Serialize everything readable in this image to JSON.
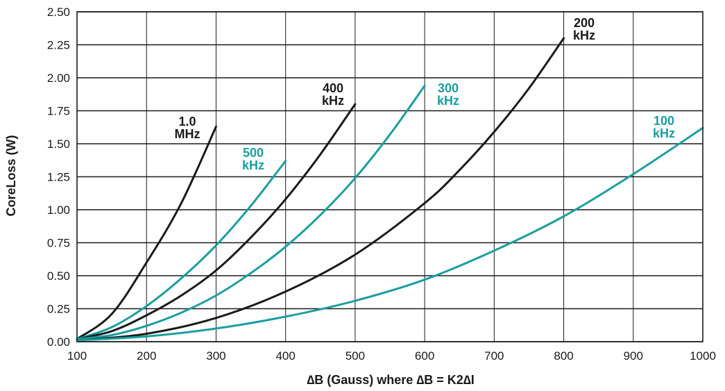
{
  "chart_data": {
    "type": "line",
    "title": "",
    "xlabel": "∆B (Gauss) where ∆B = K2∆I",
    "ylabel": "CoreLoss (W)",
    "xlim": [
      100,
      1000
    ],
    "ylim": [
      0,
      2.5
    ],
    "x_ticks": [
      "100",
      "200",
      "300",
      "400",
      "500",
      "600",
      "700",
      "800",
      "900",
      "1000"
    ],
    "y_ticks": [
      "0.00",
      "0.25",
      "0.50",
      "0.75",
      "1.00",
      "1.25",
      "1.50",
      "1.75",
      "2.00",
      "2.25",
      "2.50"
    ],
    "grid": true,
    "colors": {
      "black": "#1a1a1a",
      "teal": "#1a9ea0"
    },
    "series": [
      {
        "label_lines": [
          "1.0",
          "MHz"
        ],
        "color": "#1a1a1a",
        "points": [
          [
            100,
            0.02
          ],
          [
            150,
            0.21
          ],
          [
            200,
            0.6
          ],
          [
            250,
            1.05
          ],
          [
            300,
            1.63
          ]
        ]
      },
      {
        "label_lines": [
          "500",
          "kHz"
        ],
        "color": "#1a9ea0",
        "points": [
          [
            100,
            0.02
          ],
          [
            150,
            0.11
          ],
          [
            200,
            0.27
          ],
          [
            250,
            0.48
          ],
          [
            300,
            0.73
          ],
          [
            350,
            1.03
          ],
          [
            400,
            1.37
          ]
        ]
      },
      {
        "label_lines": [
          "400",
          "kHz"
        ],
        "color": "#1a1a1a",
        "points": [
          [
            100,
            0.02
          ],
          [
            150,
            0.08
          ],
          [
            200,
            0.2
          ],
          [
            250,
            0.35
          ],
          [
            300,
            0.54
          ],
          [
            350,
            0.79
          ],
          [
            400,
            1.08
          ],
          [
            450,
            1.42
          ],
          [
            500,
            1.8
          ]
        ]
      },
      {
        "label_lines": [
          "300",
          "kHz"
        ],
        "color": "#1a9ea0",
        "points": [
          [
            100,
            0.02
          ],
          [
            150,
            0.05
          ],
          [
            200,
            0.12
          ],
          [
            250,
            0.22
          ],
          [
            300,
            0.35
          ],
          [
            350,
            0.52
          ],
          [
            400,
            0.72
          ],
          [
            450,
            0.96
          ],
          [
            500,
            1.24
          ],
          [
            550,
            1.57
          ],
          [
            600,
            1.94
          ]
        ]
      },
      {
        "label_lines": [
          "200",
          "kHz"
        ],
        "color": "#1a1a1a",
        "points": [
          [
            100,
            0.01
          ],
          [
            200,
            0.06
          ],
          [
            300,
            0.18
          ],
          [
            400,
            0.38
          ],
          [
            500,
            0.66
          ],
          [
            600,
            1.05
          ],
          [
            650,
            1.3
          ],
          [
            700,
            1.59
          ],
          [
            750,
            1.92
          ],
          [
            800,
            2.3
          ]
        ]
      },
      {
        "label_lines": [
          "100",
          "kHz"
        ],
        "color": "#1a9ea0",
        "points": [
          [
            100,
            0.01
          ],
          [
            200,
            0.04
          ],
          [
            300,
            0.1
          ],
          [
            400,
            0.19
          ],
          [
            500,
            0.31
          ],
          [
            600,
            0.47
          ],
          [
            700,
            0.69
          ],
          [
            800,
            0.95
          ],
          [
            900,
            1.27
          ],
          [
            1000,
            1.62
          ]
        ]
      }
    ]
  }
}
